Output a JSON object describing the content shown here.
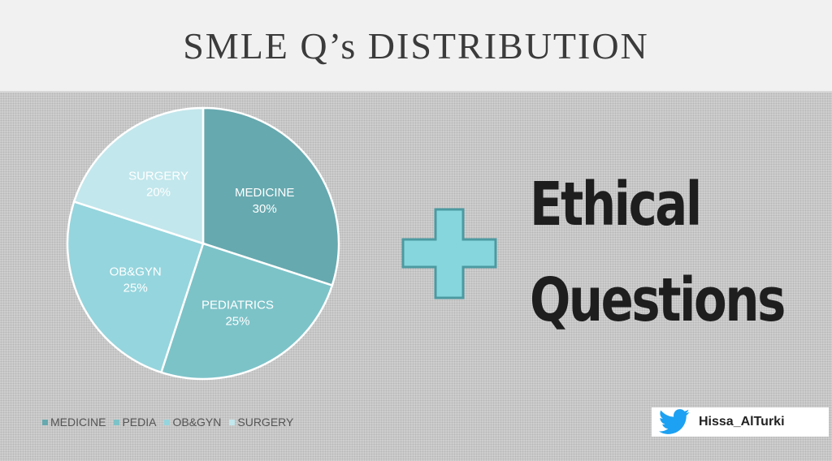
{
  "slide": {
    "title": "SMLE Q’s DISTRIBUTION",
    "ethical_line1": "Ethical",
    "ethical_line2": "Questions"
  },
  "plus_icon": {
    "name": "plus-icon",
    "color": "#86d7dd"
  },
  "twitter": {
    "icon": "twitter-bird-icon",
    "handle": "Hissa_AlTurki",
    "color": "#1da1f2"
  },
  "chart_data": {
    "type": "pie",
    "title": "",
    "slices": [
      {
        "label": "MEDICINE",
        "pct_label": "30%",
        "value": 30,
        "color": "#66a9af"
      },
      {
        "label": "PEDIATRICS",
        "pct_label": "25%",
        "value": 25,
        "color": "#7cc3c8"
      },
      {
        "label": "OB&GYN",
        "pct_label": "25%",
        "value": 25,
        "color": "#95d5dd"
      },
      {
        "label": "SURGERY",
        "pct_label": "20%",
        "value": 20,
        "color": "#c2e7ec"
      }
    ],
    "legend": {
      "placement": "bottom-left",
      "entries": [
        {
          "label": "MEDICINE",
          "color": "#66a9af"
        },
        {
          "label": "PEDIA",
          "color": "#7cc3c8"
        },
        {
          "label": "OB&GYN",
          "color": "#95d5dd"
        },
        {
          "label": "SURGERY",
          "color": "#c2e7ec"
        }
      ]
    }
  }
}
